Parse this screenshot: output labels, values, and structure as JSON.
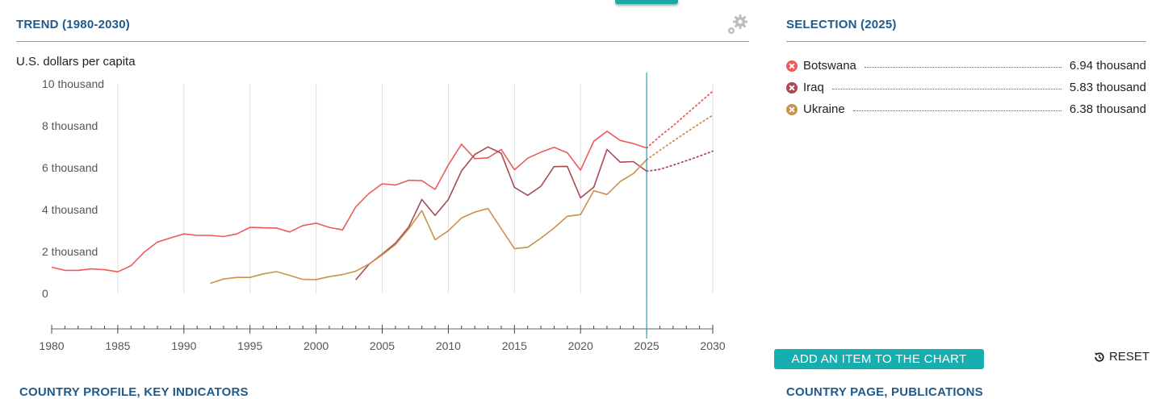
{
  "left_panel": {
    "title": "TREND (1980-2030)",
    "unit_label": "U.S. dollars per capita"
  },
  "right_panel": {
    "title": "SELECTION (2025)"
  },
  "legend": [
    {
      "name": "Botswana",
      "value": "6.94 thousand",
      "color": "#ee5a5a"
    },
    {
      "name": "Iraq",
      "value": "5.83 thousand",
      "color": "#a84a52"
    },
    {
      "name": "Ukraine",
      "value": "6.38 thousand",
      "color": "#c8924a"
    }
  ],
  "buttons": {
    "add_label": "ADD AN ITEM TO THE CHART",
    "reset_label": "RESET"
  },
  "bottom": {
    "left_title": "COUNTRY PROFILE, KEY INDICATORS",
    "right_title": "COUNTRY PAGE, PUBLICATIONS"
  },
  "icons": {
    "gear": "gear-icon",
    "reset": "reset-icon"
  },
  "colors": {
    "accent": "#17aeb0",
    "title": "#1f5a8a",
    "marker_line": "#2a9fbf"
  },
  "chart_data": {
    "type": "line",
    "xlim": [
      1980,
      2030
    ],
    "ylim": [
      0,
      10000
    ],
    "x_ticks": [
      "1980",
      "1985",
      "1990",
      "1995",
      "2000",
      "2005",
      "2010",
      "2015",
      "2020",
      "2025",
      "2030"
    ],
    "y_ticks": [
      "0",
      "2 thousand",
      "4 thousand",
      "6 thousand",
      "8 thousand",
      "10 thousand"
    ],
    "marker_year": 2025,
    "series": [
      {
        "name": "Botswana",
        "color": "#ee5a5a",
        "x": [
          1980,
          1981,
          1982,
          1983,
          1984,
          1985,
          1986,
          1987,
          1988,
          1989,
          1990,
          1991,
          1992,
          1993,
          1994,
          1995,
          1996,
          1997,
          1998,
          1999,
          2000,
          2001,
          2002,
          2003,
          2004,
          2005,
          2006,
          2007,
          2008,
          2009,
          2010,
          2011,
          2012,
          2013,
          2014,
          2015,
          2016,
          2017,
          2018,
          2019,
          2020,
          2021,
          2022,
          2023,
          2024,
          2025
        ],
        "values": [
          1250,
          1100,
          1100,
          1170,
          1130,
          1030,
          1320,
          1970,
          2450,
          2650,
          2840,
          2770,
          2770,
          2710,
          2840,
          3150,
          3130,
          3120,
          2930,
          3240,
          3350,
          3150,
          3030,
          4130,
          4770,
          5230,
          5170,
          5400,
          5380,
          4960,
          6130,
          7120,
          6430,
          6470,
          6870,
          5900,
          6450,
          6740,
          6970,
          6710,
          5880,
          7260,
          7740,
          7300,
          7150,
          6940
        ],
        "forecast_x": [
          2025,
          2026,
          2027,
          2028,
          2029,
          2030
        ],
        "forecast_values": [
          6940,
          7500,
          8000,
          8550,
          9100,
          9650
        ]
      },
      {
        "name": "Iraq",
        "color": "#a84a52",
        "x": [
          2003,
          2004,
          2005,
          2006,
          2007,
          2008,
          2009,
          2010,
          2011,
          2012,
          2013,
          2014,
          2015,
          2016,
          2017,
          2018,
          2019,
          2020,
          2021,
          2022,
          2023,
          2024,
          2025
        ],
        "values": [
          650,
          1390,
          1880,
          2400,
          3170,
          4480,
          3720,
          4480,
          5850,
          6630,
          6990,
          6690,
          5060,
          4680,
          5110,
          6050,
          6060,
          4560,
          5070,
          6870,
          6260,
          6290,
          5830
        ],
        "forecast_x": [
          2025,
          2026,
          2027,
          2028,
          2029,
          2030
        ],
        "forecast_values": [
          5830,
          5920,
          6120,
          6330,
          6550,
          6790
        ]
      },
      {
        "name": "Ukraine",
        "color": "#c8924a",
        "x": [
          1992,
          1993,
          1994,
          1995,
          1996,
          1997,
          1998,
          1999,
          2000,
          2001,
          2002,
          2003,
          2004,
          2005,
          2006,
          2007,
          2008,
          2009,
          2010,
          2011,
          2012,
          2013,
          2014,
          2015,
          2016,
          2017,
          2018,
          2019,
          2020,
          2021,
          2022,
          2023,
          2024,
          2025
        ],
        "values": [
          480,
          690,
          760,
          760,
          930,
          1040,
          860,
          670,
          660,
          800,
          900,
          1060,
          1400,
          1840,
          2330,
          3080,
          3950,
          2560,
          2990,
          3600,
          3880,
          4050,
          3090,
          2140,
          2200,
          2640,
          3120,
          3680,
          3760,
          4900,
          4720,
          5340,
          5720,
          6380
        ],
        "forecast_x": [
          2025,
          2026,
          2027,
          2028,
          2029,
          2030
        ],
        "forecast_values": [
          6380,
          6830,
          7260,
          7690,
          8100,
          8500
        ]
      }
    ]
  }
}
